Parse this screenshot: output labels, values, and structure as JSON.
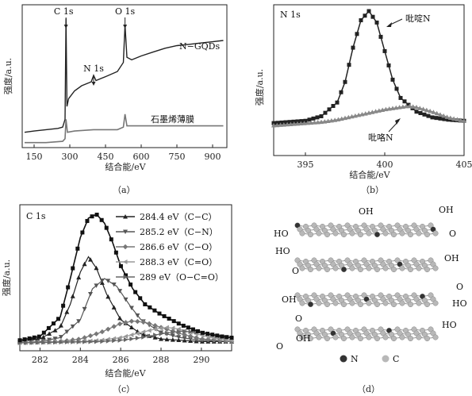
{
  "chart_data": [
    {
      "type": "line",
      "panel": "a",
      "caption": "（a）",
      "xlabel": "结合能/eV",
      "ylabel": "强度/a.u.",
      "xlim": [
        100,
        960
      ],
      "xticks": [
        150,
        300,
        450,
        600,
        750,
        900
      ],
      "peak_labels": [
        {
          "text": "C 1s",
          "x": 284
        },
        {
          "text": "N 1s",
          "x": 400
        },
        {
          "text": "O 1s",
          "x": 532
        }
      ],
      "series": [
        {
          "name": "N−GQDs",
          "color": "#222222",
          "x": [
            110,
            150,
            200,
            250,
            270,
            280,
            284,
            288,
            295,
            320,
            350,
            390,
            400,
            410,
            450,
            500,
            525,
            532,
            540,
            560,
            600,
            650,
            700,
            750,
            800,
            850,
            900,
            945
          ],
          "y": [
            0.1,
            0.11,
            0.12,
            0.13,
            0.14,
            0.2,
            0.98,
            0.3,
            0.36,
            0.42,
            0.46,
            0.49,
            0.54,
            0.5,
            0.53,
            0.57,
            0.64,
            0.93,
            0.68,
            0.66,
            0.69,
            0.72,
            0.75,
            0.77,
            0.78,
            0.79,
            0.8,
            0.81
          ]
        },
        {
          "name": "石墨烯薄膜",
          "color": "#777777",
          "x": [
            110,
            200,
            270,
            280,
            284,
            290,
            320,
            400,
            500,
            525,
            532,
            540,
            600,
            700,
            800,
            945
          ],
          "y": [
            0.02,
            0.02,
            0.03,
            0.05,
            0.2,
            0.1,
            0.11,
            0.12,
            0.12,
            0.14,
            0.24,
            0.15,
            0.15,
            0.15,
            0.15,
            0.15
          ]
        }
      ]
    },
    {
      "type": "line",
      "panel": "b",
      "caption": "（b）",
      "title": "N 1s",
      "xlabel": "结合能/eV",
      "ylabel": "强度/a.u.",
      "xlim": [
        393,
        405
      ],
      "xticks": [
        395,
        400,
        405
      ],
      "series": [
        {
          "name": "吡啶N",
          "color": "#222222",
          "x": [
            393,
            394,
            395,
            396,
            397,
            397.5,
            398,
            398.5,
            399,
            399.5,
            400,
            400.5,
            401,
            402,
            403,
            404,
            405
          ],
          "y": [
            0.02,
            0.03,
            0.04,
            0.08,
            0.2,
            0.38,
            0.68,
            0.92,
            1.0,
            0.9,
            0.65,
            0.4,
            0.24,
            0.12,
            0.07,
            0.05,
            0.04
          ]
        },
        {
          "name": "吡咯N",
          "color": "#888888",
          "x": [
            393,
            394,
            395,
            396,
            397,
            398,
            399,
            400,
            401,
            401.5,
            402,
            403,
            404,
            405
          ],
          "y": [
            0.0,
            0.01,
            0.02,
            0.03,
            0.05,
            0.08,
            0.11,
            0.14,
            0.16,
            0.17,
            0.16,
            0.12,
            0.07,
            0.04
          ]
        }
      ]
    },
    {
      "type": "line",
      "panel": "c",
      "caption": "（c）",
      "title": "C 1s",
      "xlabel": "结合能/eV",
      "ylabel": "强度/a.u.",
      "xlim": [
        281,
        291.5
      ],
      "xticks": [
        282,
        284,
        286,
        288,
        290
      ],
      "series": [
        {
          "name": "284.4 eV（C−C）",
          "color": "#222222",
          "x": [
            281,
            282,
            283,
            283.5,
            284,
            284.4,
            284.8,
            285.3,
            286,
            287,
            288,
            289,
            290,
            291.5
          ],
          "y": [
            0.01,
            0.03,
            0.12,
            0.3,
            0.55,
            0.67,
            0.58,
            0.38,
            0.18,
            0.07,
            0.03,
            0.02,
            0.01,
            0.01
          ]
        },
        {
          "name": "285.2 eV（C−N）",
          "color": "#555555",
          "x": [
            281,
            282,
            283,
            284,
            284.6,
            285.2,
            285.8,
            286.5,
            287,
            288,
            289,
            290,
            291.5
          ],
          "y": [
            0.0,
            0.01,
            0.04,
            0.18,
            0.42,
            0.5,
            0.44,
            0.28,
            0.18,
            0.08,
            0.04,
            0.02,
            0.01
          ]
        },
        {
          "name": "286.6 eV（C−O）",
          "color": "#777777",
          "x": [
            281,
            283,
            284,
            285,
            286,
            286.6,
            287.2,
            288,
            289,
            290,
            291.5
          ],
          "y": [
            0.0,
            0.01,
            0.03,
            0.08,
            0.15,
            0.17,
            0.16,
            0.12,
            0.07,
            0.03,
            0.01
          ]
        },
        {
          "name": "288.3 eV（C=O）",
          "color": "#999999",
          "x": [
            281,
            284,
            285,
            286,
            287,
            287.8,
            288.3,
            288.8,
            289.5,
            290.5,
            291.5
          ],
          "y": [
            0.0,
            0.01,
            0.02,
            0.04,
            0.08,
            0.11,
            0.12,
            0.11,
            0.08,
            0.04,
            0.02
          ]
        },
        {
          "name": "289 eV（O−C=O）",
          "color": "#666666",
          "x": [
            281,
            285,
            286,
            287,
            288,
            289,
            290,
            291,
            291.5
          ],
          "y": [
            0.0,
            0.01,
            0.02,
            0.04,
            0.07,
            0.09,
            0.08,
            0.05,
            0.04
          ]
        },
        {
          "name": "",
          "color": "#111111",
          "x": [
            281,
            282,
            283,
            283.5,
            284,
            284.4,
            284.8,
            285.2,
            285.6,
            286,
            286.6,
            287.2,
            288,
            289,
            290,
            291,
            291.5
          ],
          "y": [
            0.02,
            0.05,
            0.2,
            0.5,
            0.82,
            0.97,
            1.0,
            0.93,
            0.78,
            0.6,
            0.42,
            0.3,
            0.22,
            0.14,
            0.08,
            0.05,
            0.04
          ]
        }
      ]
    }
  ],
  "diagram_d": {
    "caption": "（d）",
    "legend": [
      {
        "label": "N",
        "color": "#333333"
      },
      {
        "label": "C",
        "color": "#b8b8b8"
      }
    ],
    "groups": [
      "OH",
      "HO",
      "O",
      "OH",
      "HO",
      "O",
      "OH",
      "OH",
      "O",
      "HO",
      "O",
      "OH",
      "O",
      "HO",
      "OH"
    ]
  }
}
